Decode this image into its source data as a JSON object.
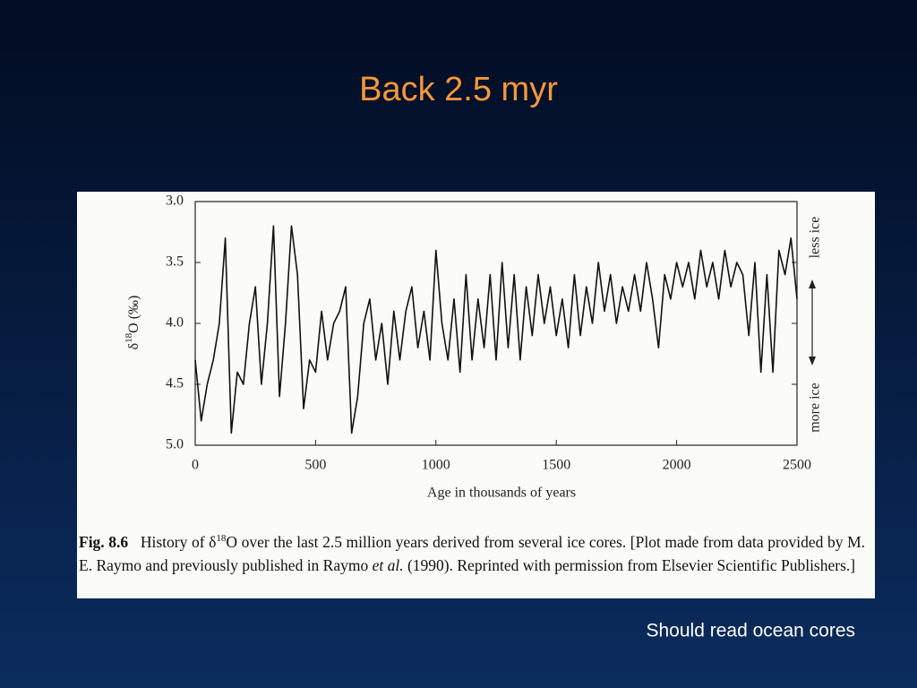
{
  "slide": {
    "title": "Back 2.5 myr",
    "note": "Should read ocean cores"
  },
  "chart_data": {
    "type": "line",
    "xlabel": "Age in thousands of years",
    "ylabel_parts": [
      "δ",
      "18",
      "O (‰)"
    ],
    "annotations": {
      "top": "less ice",
      "bottom": "more ice"
    },
    "caption": {
      "label": "Fig. 8.6",
      "parts": [
        "History of δ",
        "18",
        "O over the last 2.5 million years derived from several ice cores. [Plot made from data provided by M. E. Raymo and previously published in Raymo ",
        "et al.",
        " (1990). Reprinted with permission from Elsevier Scientific Publishers.]"
      ]
    },
    "color": "#111111",
    "xlim": [
      0,
      2500
    ],
    "xticks": [
      0,
      500,
      1000,
      1500,
      2000,
      2500
    ],
    "ylim": [
      3,
      5
    ],
    "y_inverted": true,
    "yticks": [
      {
        "value": 3,
        "label": "3.0"
      },
      {
        "value": 3.5,
        "label": "3.5"
      },
      {
        "value": 4,
        "label": "4.0"
      },
      {
        "value": 4.5,
        "label": "4.5"
      },
      {
        "value": 5,
        "label": "5.0"
      }
    ],
    "x": [
      0,
      25,
      50,
      75,
      100,
      125,
      150,
      175,
      200,
      225,
      250,
      275,
      300,
      325,
      350,
      375,
      400,
      425,
      450,
      475,
      500,
      525,
      550,
      575,
      600,
      625,
      650,
      675,
      700,
      725,
      750,
      775,
      800,
      825,
      850,
      875,
      900,
      925,
      950,
      975,
      1000,
      1025,
      1050,
      1075,
      1100,
      1125,
      1150,
      1175,
      1200,
      1225,
      1250,
      1275,
      1300,
      1325,
      1350,
      1375,
      1400,
      1425,
      1450,
      1475,
      1500,
      1525,
      1550,
      1575,
      1600,
      1625,
      1650,
      1675,
      1700,
      1725,
      1750,
      1775,
      1800,
      1825,
      1850,
      1875,
      1900,
      1925,
      1950,
      1975,
      2000,
      2025,
      2050,
      2075,
      2100,
      2125,
      2150,
      2175,
      2200,
      2225,
      2250,
      2275,
      2300,
      2325,
      2350,
      2375,
      2400,
      2425,
      2450,
      2475,
      2500
    ],
    "values": [
      4.3,
      4.8,
      4.5,
      4.3,
      4.0,
      3.3,
      4.9,
      4.4,
      4.5,
      4.0,
      3.7,
      4.5,
      4.0,
      3.2,
      4.6,
      4.0,
      3.2,
      3.6,
      4.7,
      4.3,
      4.4,
      3.9,
      4.3,
      4.0,
      3.9,
      3.7,
      4.9,
      4.6,
      4.0,
      3.8,
      4.3,
      4.0,
      4.5,
      3.9,
      4.3,
      3.9,
      3.7,
      4.2,
      3.9,
      4.3,
      3.4,
      4.0,
      4.3,
      3.8,
      4.4,
      3.6,
      4.3,
      3.8,
      4.2,
      3.6,
      4.3,
      3.5,
      4.2,
      3.6,
      4.3,
      3.7,
      4.1,
      3.6,
      4.0,
      3.7,
      4.1,
      3.8,
      4.2,
      3.6,
      4.1,
      3.7,
      4.0,
      3.5,
      3.9,
      3.6,
      4.0,
      3.7,
      3.9,
      3.6,
      3.9,
      3.5,
      3.8,
      4.2,
      3.6,
      3.8,
      3.5,
      3.7,
      3.5,
      3.8,
      3.4,
      3.7,
      3.5,
      3.8,
      3.4,
      3.7,
      3.5,
      3.6,
      4.1,
      3.5,
      4.4,
      3.6,
      4.4,
      3.4,
      3.6,
      3.3,
      3.8
    ]
  }
}
